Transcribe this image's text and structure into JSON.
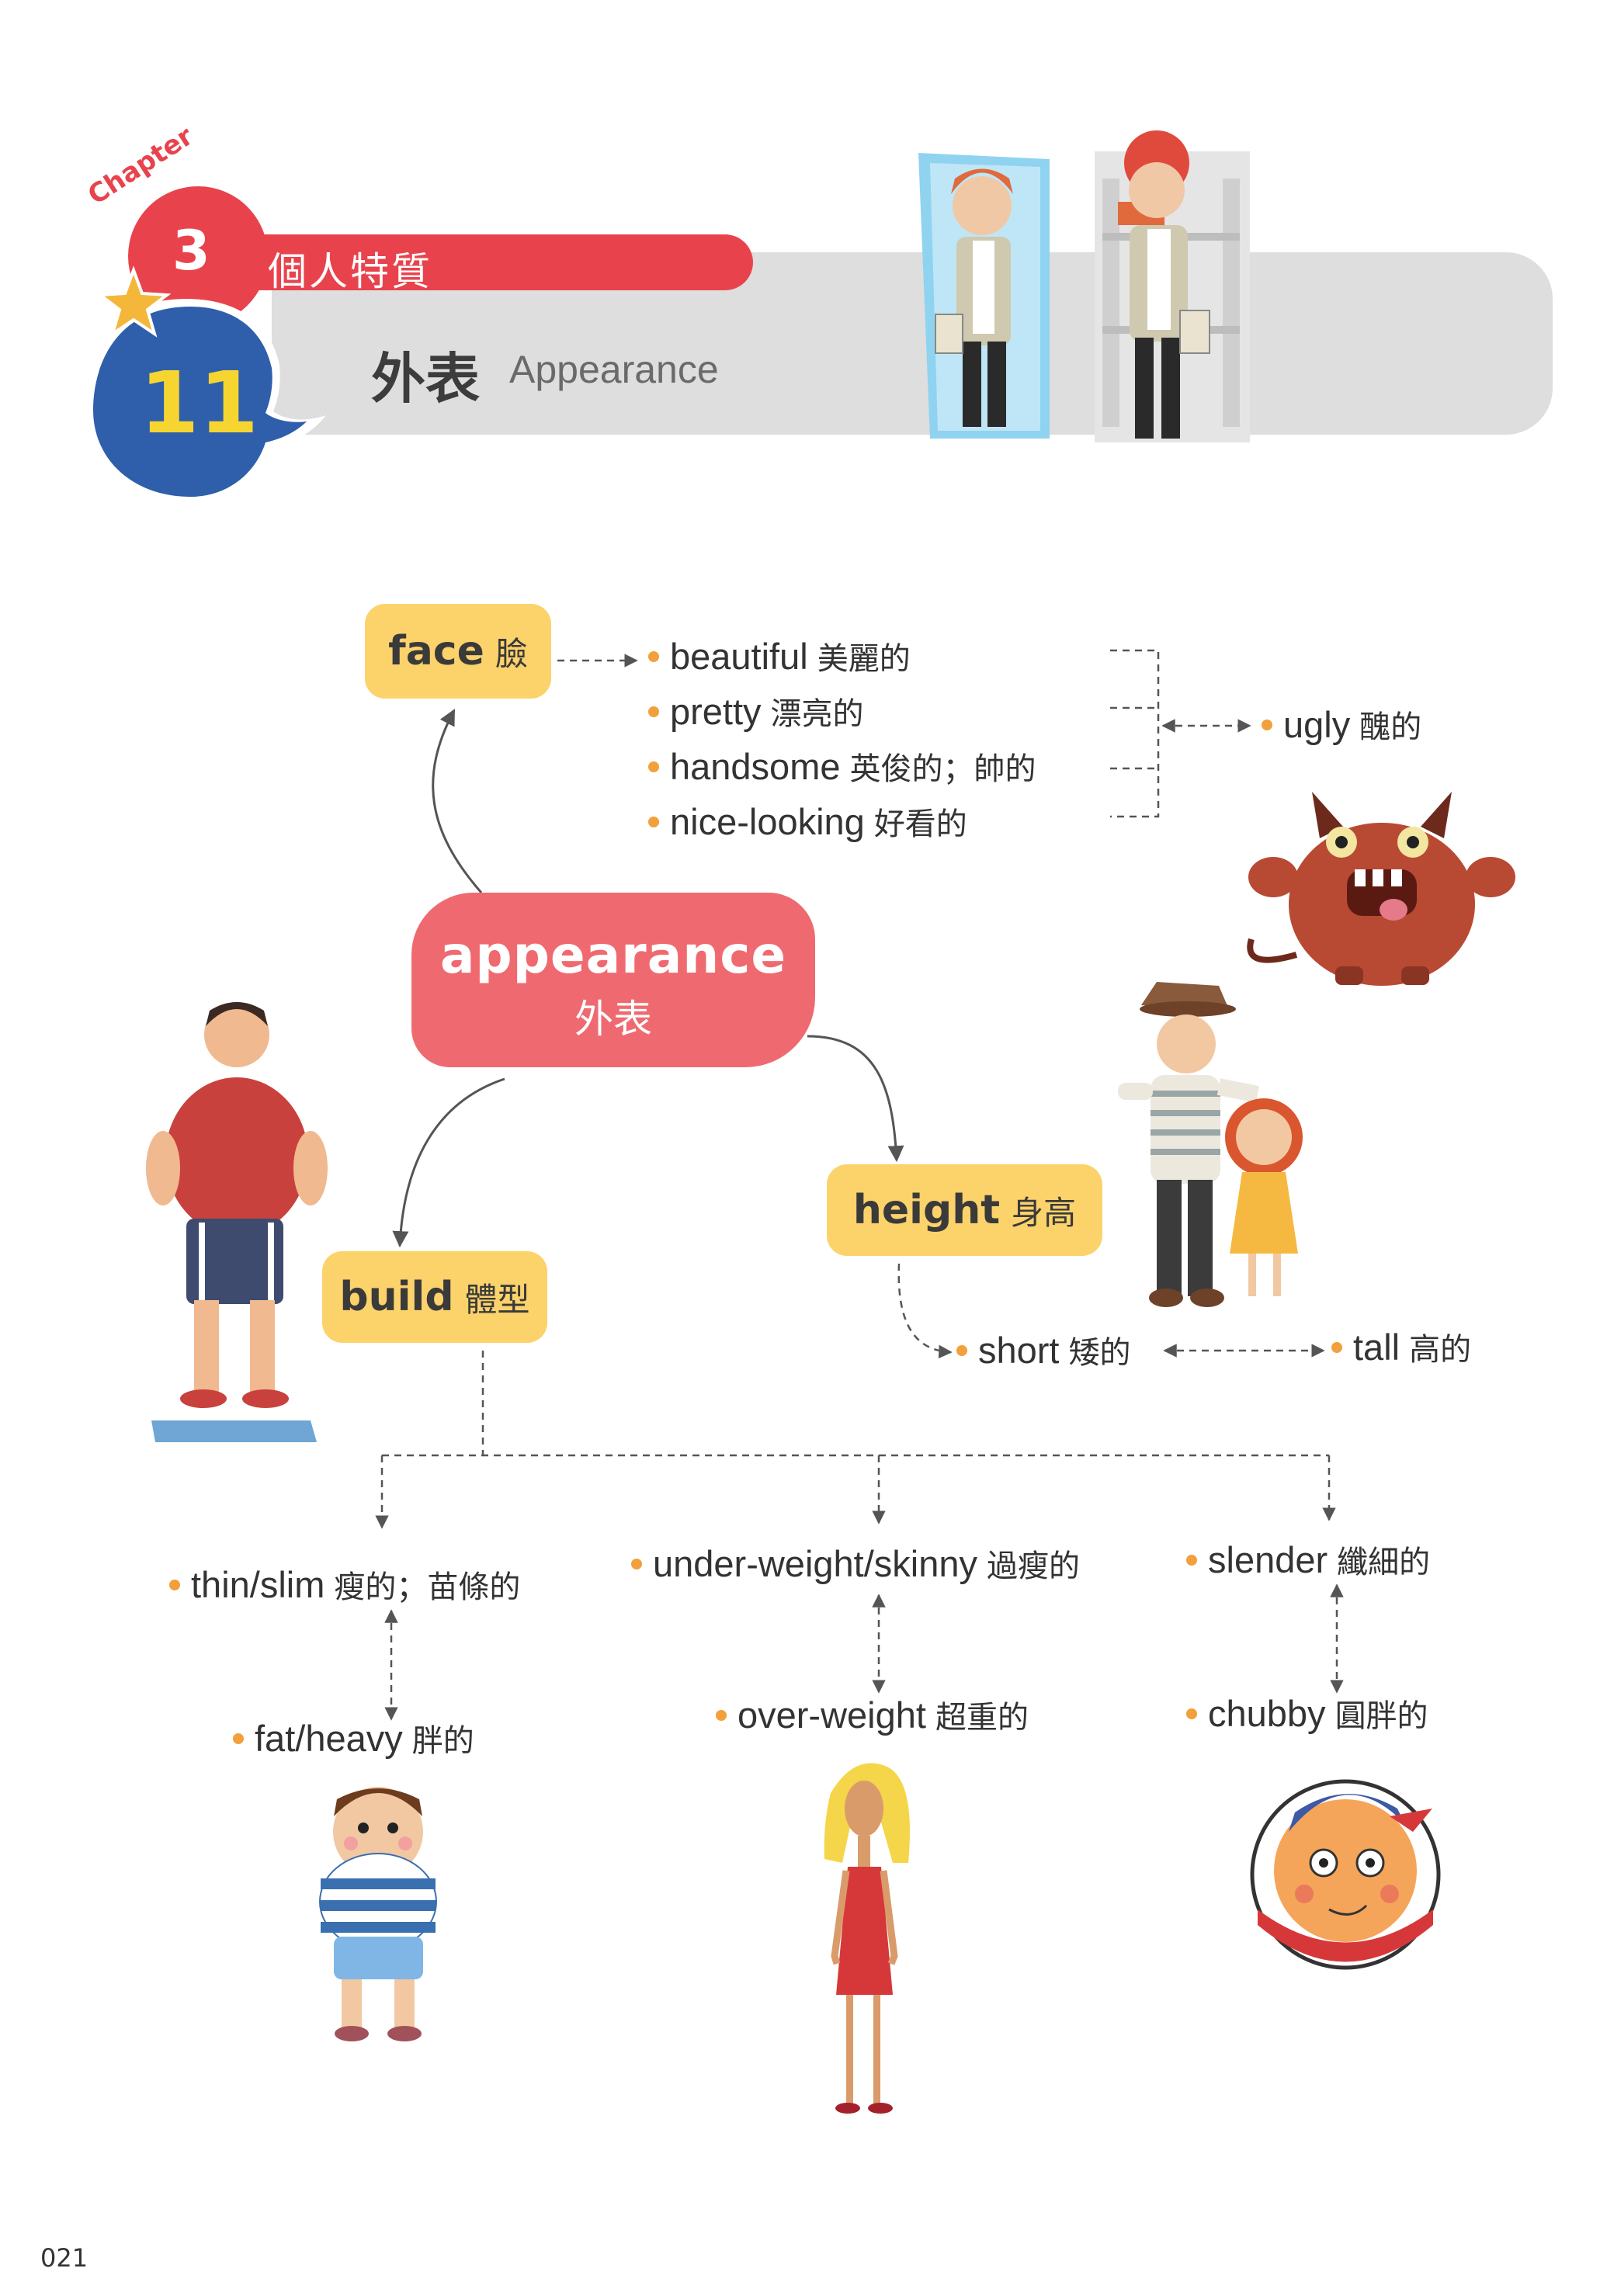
{
  "header": {
    "chapter_label": "Chapter",
    "chapter_number": "3",
    "chapter_title": "個人特質",
    "unit_number": "11",
    "unit_title_zh": "外表",
    "unit_title_en": "Appearance"
  },
  "center": {
    "en": "appearance",
    "zh": "外表"
  },
  "face": {
    "label_en": "face",
    "label_zh": "臉",
    "words": [
      {
        "en": "beautiful",
        "zh": "美麗的"
      },
      {
        "en": "pretty",
        "zh": "漂亮的"
      },
      {
        "en": "handsome",
        "zh": "英俊的；帥的"
      },
      {
        "en": "nice-looking",
        "zh": "好看的"
      }
    ],
    "opposite": {
      "en": "ugly",
      "zh": "醜的"
    }
  },
  "height": {
    "label_en": "height",
    "label_zh": "身高",
    "short": {
      "en": "short",
      "zh": "矮的"
    },
    "tall": {
      "en": "tall",
      "zh": "高的"
    }
  },
  "build": {
    "label_en": "build",
    "label_zh": "體型",
    "pairs": [
      {
        "top": {
          "en": "thin/slim",
          "zh": "瘦的；苗條的"
        },
        "bottom": {
          "en": "fat/heavy",
          "zh": "胖的"
        }
      },
      {
        "top": {
          "en": "under-weight/skinny",
          "zh": "過瘦的"
        },
        "bottom": {
          "en": "over-weight",
          "zh": "超重的"
        }
      },
      {
        "top": {
          "en": "slender",
          "zh": "纖細的"
        },
        "bottom": {
          "en": "chubby",
          "zh": "圓胖的"
        }
      }
    ]
  },
  "page_number": "021",
  "colors": {
    "red": "#e8434d",
    "blue": "#2f5faa",
    "yellow": "#fcd26b",
    "pink": "#ef6a70",
    "orange_dot": "#f2a03c"
  }
}
